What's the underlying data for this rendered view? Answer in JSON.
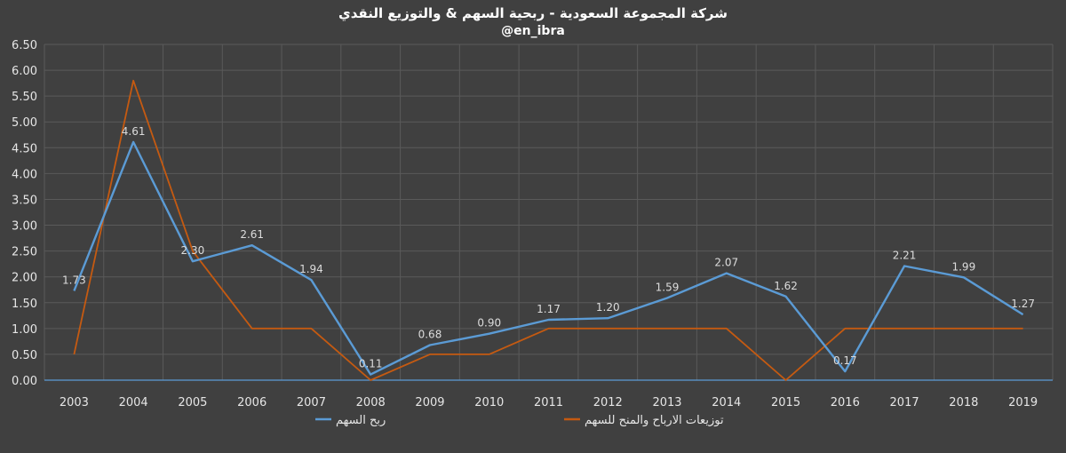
{
  "chart_data": {
    "type": "line",
    "title": "شركة المجموعة السعودية - ربحية السهم & والتوزيع النقدي",
    "subtitle": "@en_ibra",
    "categories": [
      "2003",
      "2004",
      "2005",
      "2006",
      "2007",
      "2008",
      "2009",
      "2010",
      "2011",
      "2012",
      "2013",
      "2014",
      "2015",
      "2016",
      "2017",
      "2018",
      "2019"
    ],
    "ylim": [
      0,
      6.5
    ],
    "yticks": [
      "0.00",
      "0.50",
      "1.00",
      "1.50",
      "2.00",
      "2.50",
      "3.00",
      "3.50",
      "4.00",
      "4.50",
      "5.00",
      "5.50",
      "6.00",
      "6.50"
    ],
    "grid": true,
    "legend_position": "bottom",
    "series": [
      {
        "name": "ربح السهم",
        "color": "#5b9bd5",
        "values": [
          1.73,
          4.61,
          2.3,
          2.61,
          1.94,
          0.11,
          0.68,
          0.9,
          1.17,
          1.2,
          1.59,
          2.07,
          1.62,
          0.17,
          2.21,
          1.99,
          1.27
        ],
        "data_labels": [
          "1.73",
          "4.61",
          "2.30",
          "2.61",
          "1.94",
          "0.11",
          "0.68",
          "0.90",
          "1.17",
          "1.20",
          "1.59",
          "2.07",
          "1.62",
          "0.17",
          "2.21",
          "1.99",
          "1.27"
        ]
      },
      {
        "name": "توزيعات الارباح والمنح للسهم",
        "color": "#c55a11",
        "values": [
          0.5,
          5.8,
          2.5,
          1.0,
          1.0,
          0.0,
          0.5,
          0.5,
          1.0,
          1.0,
          1.0,
          1.0,
          0.0,
          1.0,
          1.0,
          1.0,
          1.0
        ]
      }
    ]
  }
}
